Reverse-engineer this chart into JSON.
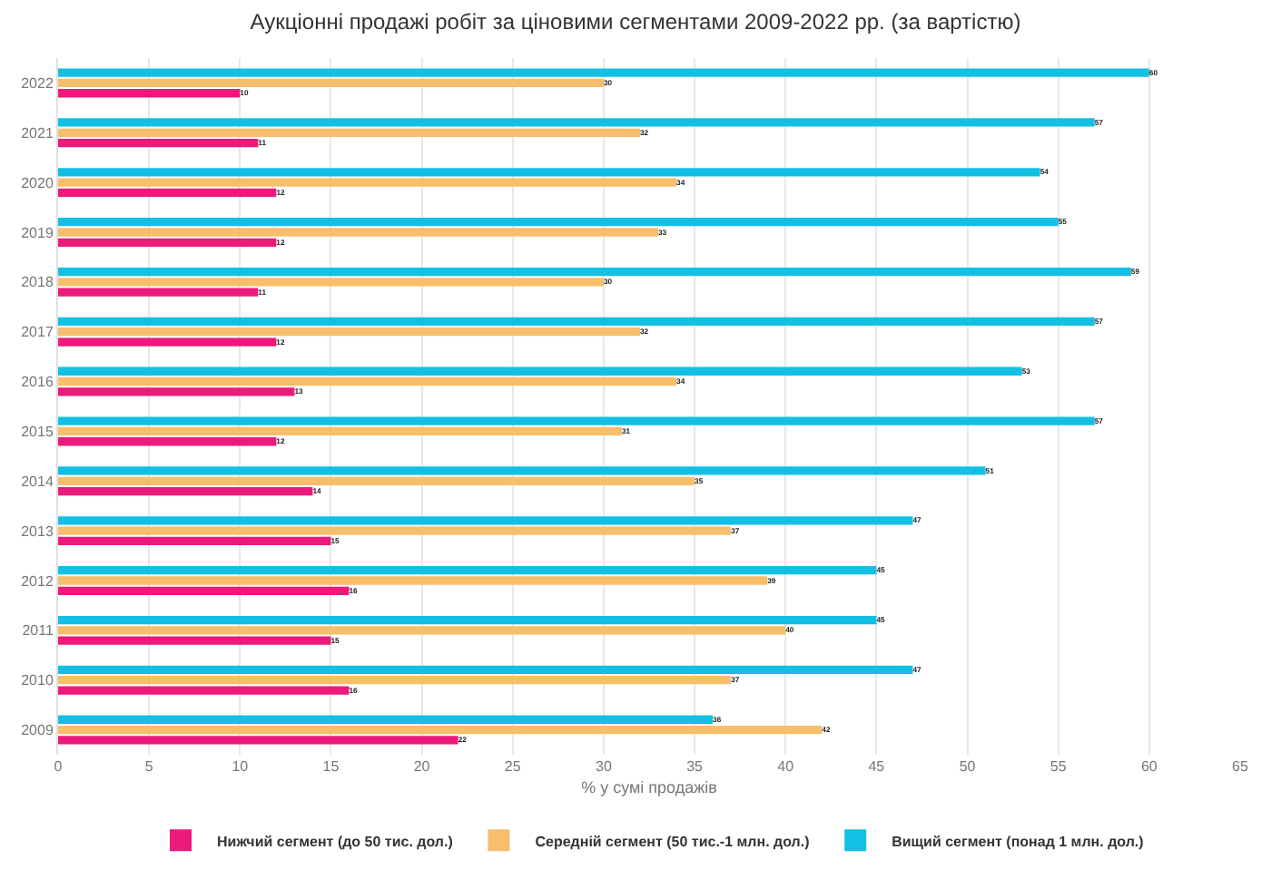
{
  "chart_data": {
    "type": "bar",
    "orientation": "horizontal",
    "title": "Аукціонні продажі робіт за ціновими сегментами 2009-2022 рр. (за вартістю)",
    "xlabel": "% у сумі продажів",
    "categories": [
      "2022",
      "2021",
      "2020",
      "2019",
      "2018",
      "2017",
      "2016",
      "2015",
      "2014",
      "2013",
      "2012",
      "2011",
      "2010",
      "2009"
    ],
    "series": [
      {
        "name": "Нижчий сегмент (до 50 тис. дол.)",
        "color": "#ec1a7a",
        "values": [
          10,
          11,
          12,
          12,
          11,
          12,
          13,
          12,
          14,
          15,
          16,
          15,
          16,
          22
        ]
      },
      {
        "name": "Середній сегмент (50 тис.-1 млн. дол.)",
        "color": "#f7be6c",
        "values": [
          30,
          32,
          34,
          33,
          30,
          32,
          34,
          31,
          35,
          37,
          39,
          40,
          37,
          42
        ]
      },
      {
        "name": "Вищий сегмент (понад 1 млн. дол.)",
        "color": "#13c0e4",
        "values": [
          60,
          57,
          54,
          55,
          59,
          57,
          53,
          57,
          51,
          47,
          45,
          45,
          47,
          36
        ]
      }
    ],
    "xlim": [
      0,
      65
    ],
    "xticks": [
      0,
      5,
      10,
      15,
      20,
      25,
      30,
      35,
      40,
      45,
      50,
      55,
      60,
      65
    ],
    "data_labels": true,
    "grid": "x",
    "legend": "bottom"
  }
}
